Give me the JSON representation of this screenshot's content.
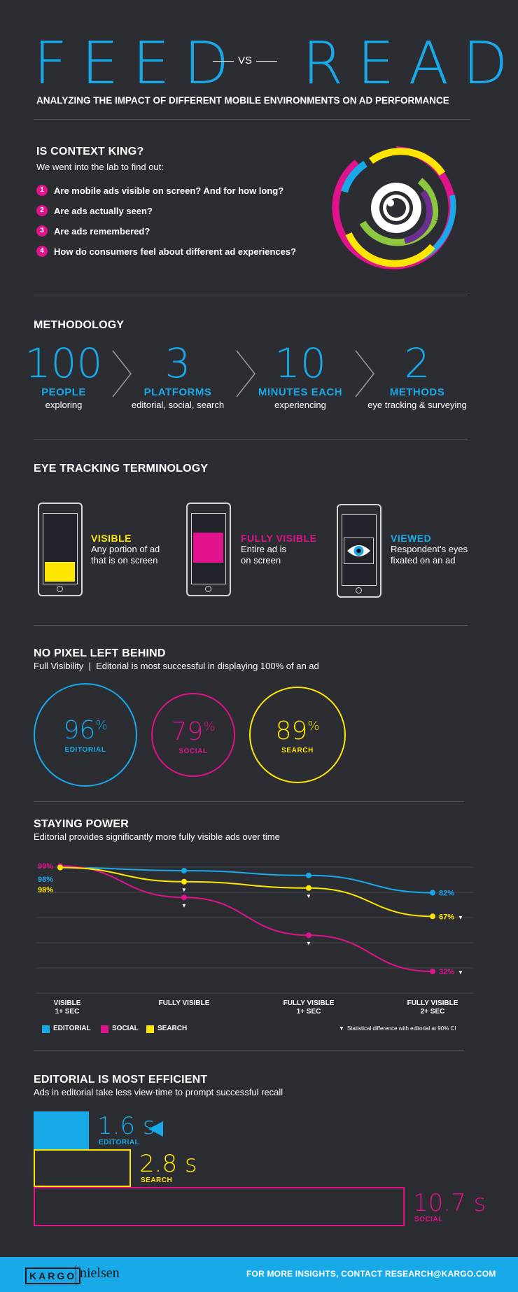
{
  "header": {
    "title_left": "FEED",
    "vs": "VS",
    "title_right": "READ",
    "subtitle": "ANALYZING THE IMPACT OF DIFFERENT MOBILE ENVIRONMENTS ON AD PERFORMANCE"
  },
  "context": {
    "heading": "IS CONTEXT KING?",
    "intro": "We went into the lab to find out:",
    "questions": [
      {
        "num": "1",
        "text": "Are mobile ads visible on screen? And for how long?"
      },
      {
        "num": "2",
        "text": "Are ads actually seen?"
      },
      {
        "num": "3",
        "text": "Are ads remembered?"
      },
      {
        "num": "4",
        "text": "How do consumers feel about different ad experiences?"
      }
    ],
    "icon": "eye-target-icon"
  },
  "methodology": {
    "heading": "METHODOLOGY",
    "items": [
      {
        "number": "100",
        "label": "PEOPLE",
        "desc": "exploring"
      },
      {
        "number": "3",
        "label": "PLATFORMS",
        "desc": "editorial, social, search"
      },
      {
        "number": "10",
        "label": "MINUTES EACH",
        "desc": "experiencing"
      },
      {
        "number": "2",
        "label": "METHODS",
        "desc": "eye tracking & surveying"
      }
    ]
  },
  "terminology": {
    "heading": "EYE TRACKING TERMINOLOGY",
    "items": [
      {
        "title": "VISIBLE",
        "line1": "Any portion of ad",
        "line2": "that is on screen",
        "color": "#ffe600"
      },
      {
        "title": "FULLY VISIBLE",
        "line1": "Entire ad is",
        "line2": "on screen",
        "color": "#e0128c"
      },
      {
        "title": "VIEWED",
        "line1": "Respondent's eyes",
        "line2": "fixated on an ad",
        "color": "#17a9e8"
      }
    ]
  },
  "pixel": {
    "heading": "NO PIXEL LEFT BEHIND",
    "sub": "Full Visibility  |  Editorial is most successful in displaying 100% of an ad",
    "items": [
      {
        "value": "96",
        "unit": "%",
        "label": "EDITORIAL",
        "color": "#17a9e8"
      },
      {
        "value": "79",
        "unit": "%",
        "label": "SOCIAL",
        "color": "#e0128c"
      },
      {
        "value": "89",
        "unit": "%",
        "label": "SEARCH",
        "color": "#ffe600"
      }
    ]
  },
  "staying": {
    "heading": "STAYING POWER",
    "sub": "Editorial provides significantly more fully visible ads over time",
    "legend_note": "Statistical difference with editorial at 90% CI"
  },
  "chart_data": {
    "type": "line",
    "categories": [
      [
        "VISIBLE",
        "1+ SEC"
      ],
      [
        "FULLY VISIBLE"
      ],
      [
        "FULLY VISIBLE",
        "1+ SEC"
      ],
      [
        "FULLY VISIBLE",
        "2+ SEC"
      ]
    ],
    "ylim": [
      0,
      100
    ],
    "grid": true,
    "legend_position": "bottom",
    "series": [
      {
        "name": "EDITORIAL",
        "color": "#17a9e8",
        "values": [
          98,
          96,
          93,
          82
        ],
        "start_label": "98%",
        "end_label": "82%",
        "sig": [
          false,
          false,
          false,
          false
        ]
      },
      {
        "name": "SOCIAL",
        "color": "#e0128c",
        "values": [
          99,
          79,
          55,
          32
        ],
        "start_label": "99%",
        "end_label": "32%",
        "sig": [
          false,
          true,
          true,
          true
        ]
      },
      {
        "name": "SEARCH",
        "color": "#ffe600",
        "values": [
          98,
          89,
          85,
          67
        ],
        "start_label": "98%",
        "end_label": "67%",
        "sig": [
          false,
          true,
          true,
          true
        ]
      }
    ]
  },
  "efficient": {
    "heading": "EDITORIAL IS MOST EFFICIENT",
    "sub": "Ads in editorial take less view-time to prompt successful recall",
    "items": [
      {
        "value": "1.6 s",
        "seconds": 1.6,
        "label": "EDITORIAL",
        "color": "#17a9e8"
      },
      {
        "value": "2.8 s",
        "seconds": 2.8,
        "label": "SEARCH",
        "color": "#ffe600"
      },
      {
        "value": "10.7 s",
        "seconds": 10.7,
        "label": "SOCIAL",
        "color": "#e0128c"
      }
    ]
  },
  "footer": {
    "logo1": "KARGO",
    "logo2": "nielsen",
    "contact": "FOR MORE INSIGHTS, CONTACT RESEARCH@KARGO.COM"
  }
}
